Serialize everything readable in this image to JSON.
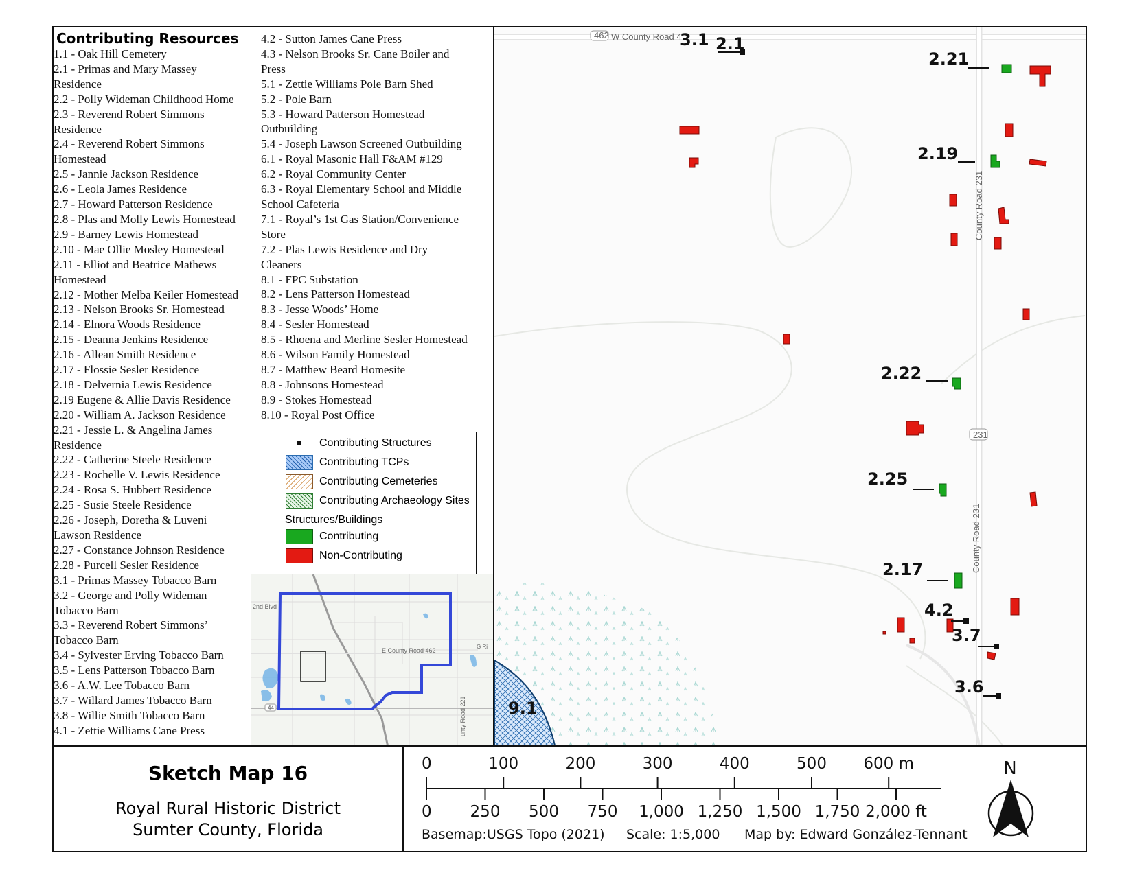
{
  "resources": {
    "title": "Contributing Resources",
    "column1": [
      "1.1 - Oak Hill Cemetery",
      "2.1 - Primas and Mary Massey",
      "Residence",
      "2.2 - Polly Wideman Childhood Home",
      "2.3 - Reverend Robert Simmons",
      "Residence",
      "2.4 - Reverend Robert Simmons",
      "Homestead",
      "2.5 - Jannie Jackson Residence",
      "2.6 - Leola James Residence",
      "2.7 - Howard Patterson Residence",
      "2.8 - Plas and Molly Lewis Homestead",
      "2.9 - Barney Lewis Homestead",
      "2.10 - Mae Ollie Mosley Homestead",
      "2.11 - Elliot and Beatrice Mathews",
      "Homestead",
      "2.12 - Mother Melba Keiler Homestead",
      "2.13 - Nelson Brooks Sr. Homestead",
      "2.14 - Elnora Woods Residence",
      "2.15 - Deanna Jenkins Residence",
      "2.16 - Allean Smith Residence",
      "2.17 - Flossie Sesler Residence",
      "2.18 - Delvernia Lewis Residence",
      "2.19 Eugene & Allie Davis Residence",
      "2.20 - William A. Jackson Residence",
      "2.21 - Jessie L. & Angelina James",
      "Residence",
      "2.22 - Catherine Steele Residence",
      "2.23 -  Rochelle V. Lewis Residence",
      "2.24 - Rosa S. Hubbert Residence",
      "2.25 - Susie Steele Residence",
      "2.26 - Joseph, Doretha & Luveni",
      "Lawson Residence",
      "2.27 - Constance Johnson Residence",
      "2.28 - Purcell Sesler Residence",
      "3.1 - Primas Massey Tobacco Barn",
      "3.2 - George and Polly Wideman",
      "Tobacco Barn",
      "3.3 - Reverend Robert Simmons’",
      "Tobacco Barn",
      "3.4 - Sylvester Erving Tobacco Barn",
      "3.5 - Lens Patterson Tobacco Barn",
      "3.6 - A.W. Lee Tobacco Barn",
      "3.7 - Willard James Tobacco Barn",
      "3.8 - Willie Smith Tobacco Barn",
      "4.1 - Zettie Williams Cane Press"
    ],
    "column2": [
      "4.2 - Sutton James Cane Press",
      "4.3 - Nelson Brooks Sr. Cane Boiler and",
      "Press",
      "5.1 - Zettie Williams Pole Barn Shed",
      "5.2 - Pole Barn",
      "5.3 - Howard Patterson Homestead",
      "Outbuilding",
      "5.4 - Joseph Lawson Screened Outbuilding",
      "6.1 - Royal Masonic Hall F&AM #129",
      "6.2 - Royal Community Center",
      "6.3 - Royal Elementary School and Middle",
      "School Cafeteria",
      "7.1 - Royal’s 1st Gas Station/Convenience",
      "Store",
      "7.2 - Plas Lewis Residence and Dry",
      "Cleaners",
      "8.1 - FPC Substation",
      "8.2 - Lens Patterson Homestead",
      "8.3 - Jesse Woods’ Home",
      "8.4 - Sesler Homestead",
      "8.5 - Rhoena and Merline Sesler Homestead",
      "8.6 - Wilson Family Homestead",
      "8.7 - Matthew Beard Homesite",
      "8.8 - Johnsons Homestead",
      "8.9 - Stokes Homestead",
      "8.10 - Royal Post Office"
    ]
  },
  "legend": {
    "items": [
      {
        "label": "Contributing Structures",
        "kind": "point"
      },
      {
        "label": "Contributing TCPs",
        "kind": "tcp"
      },
      {
        "label": "Contributing Cemeteries",
        "kind": "cemetery"
      },
      {
        "label": "Contributing Archaeology Sites",
        "kind": "archaeology"
      },
      {
        "label": "Structures/Buildings",
        "kind": "heading"
      },
      {
        "label": "Contributing",
        "kind": "green"
      },
      {
        "label": "Non-Contributing",
        "kind": "red"
      }
    ]
  },
  "inset": {
    "labels": {
      "road_2nd": "2nd Blvd",
      "road_462": "E County Road 462",
      "road_221": "unty Road 221",
      "shield_44": "44",
      "edge": "G Ri"
    }
  },
  "map": {
    "road_north": "W County Road 4",
    "shield_462": "462",
    "road_231_upper": "County Road 231",
    "road_231_lower": "County Road 231",
    "shield_231": "231",
    "site_label": "9.1",
    "labels": [
      "3.1",
      "2.1",
      "2.21",
      "2.19",
      "2.22",
      "2.25",
      "2.17",
      "4.2",
      "3.7",
      "3.6"
    ]
  },
  "title_block": {
    "title": "Sketch Map 16",
    "subtitle_line1": "Royal Rural Historic District",
    "subtitle_line2": "Sumter County, Florida"
  },
  "scale": {
    "meters": [
      "0",
      "100",
      "200",
      "300",
      "400",
      "500",
      "600 m"
    ],
    "feet": [
      "0",
      "250",
      "500",
      "750",
      "1,000",
      "1,250",
      "1,500",
      "1,750",
      "2,000 ft"
    ],
    "basemap": "Basemap:USGS Topo (2021)",
    "scale_text": "Scale: 1:5,000",
    "credit": "Map by: Edward González-Tennant",
    "north": "N"
  },
  "colors": {
    "contributing": "#19a81f",
    "non_contributing": "#e31a12",
    "district_boundary": "#3448d8",
    "tcp": "#2b6cb0"
  }
}
